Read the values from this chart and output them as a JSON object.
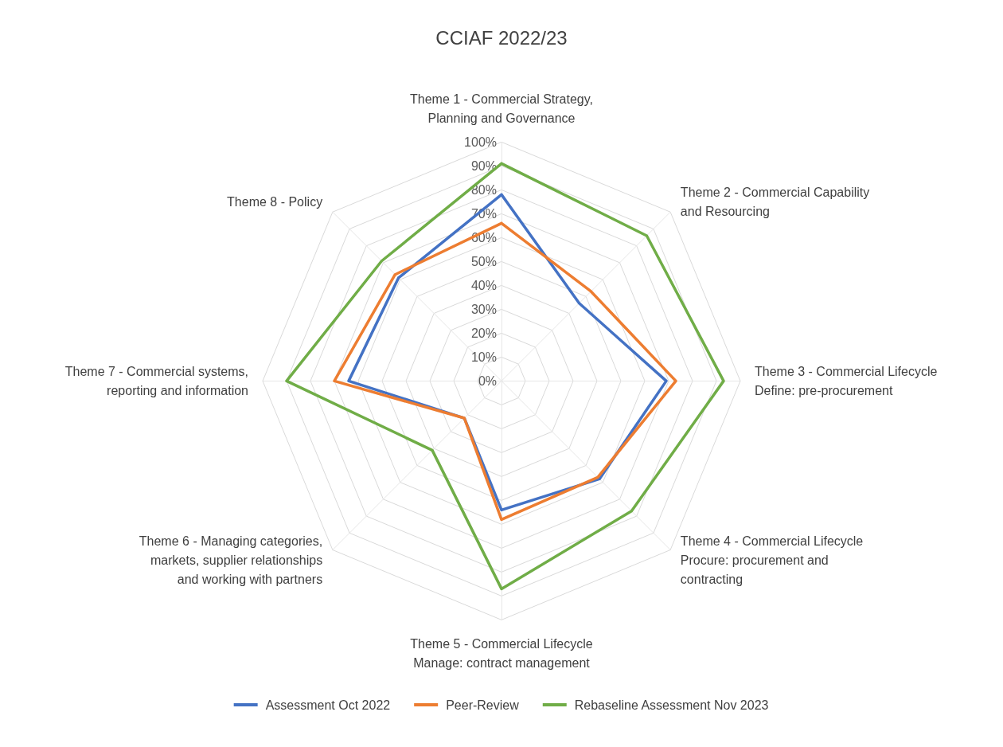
{
  "chart_data": {
    "type": "radar",
    "title": "CCIAF 2022/23",
    "categories": [
      "Theme 1 - Commercial Strategy, Planning and Governance",
      "Theme 2 - Commercial Capability and Resourcing",
      "Theme 3 - Commercial Lifecycle Define: pre-procurement",
      "Theme 4 - Commercial Lifecycle Procure: procurement and contracting",
      "Theme 5 - Commercial Lifecycle Manage: contract management",
      "Theme 6 - Managing categories, markets, supplier relationships and working with partners",
      "Theme 7 - Commercial systems, reporting and information",
      "Theme 8 - Policy"
    ],
    "series": [
      {
        "name": "Assessment Oct 2022",
        "color": "#4472c4",
        "values": [
          78,
          46,
          69,
          58,
          54,
          22,
          64,
          61
        ]
      },
      {
        "name": "Peer-Review",
        "color": "#ed7d31",
        "values": [
          66,
          53,
          73,
          57,
          58,
          22,
          70,
          63
        ]
      },
      {
        "name": "Rebaseline Assessment Nov 2023",
        "color": "#70ad47",
        "values": [
          91,
          86,
          93,
          77,
          87,
          41,
          90,
          71
        ]
      }
    ],
    "ylim": [
      0,
      100
    ],
    "yticks": [
      {
        "value": 0,
        "label": "0%"
      },
      {
        "value": 10,
        "label": "10%"
      },
      {
        "value": 20,
        "label": "20%"
      },
      {
        "value": 30,
        "label": "30%"
      },
      {
        "value": 40,
        "label": "40%"
      },
      {
        "value": 50,
        "label": "50%"
      },
      {
        "value": 60,
        "label": "60%"
      },
      {
        "value": 70,
        "label": "70%"
      },
      {
        "value": 80,
        "label": "80%"
      },
      {
        "value": 90,
        "label": "90%"
      },
      {
        "value": 100,
        "label": "100%"
      }
    ],
    "grid": true,
    "legend": "bottom",
    "marker": "none",
    "line_style": "solid"
  }
}
